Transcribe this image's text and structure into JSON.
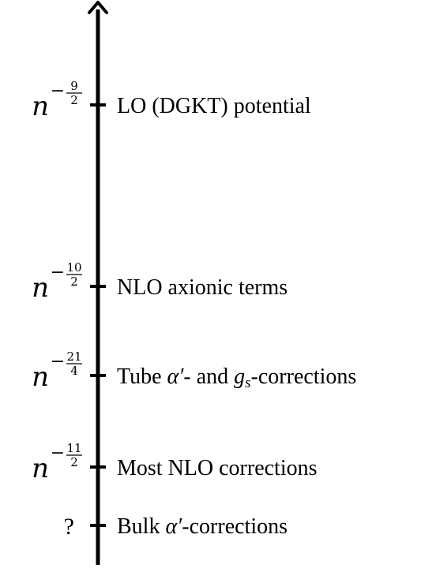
{
  "diagram": {
    "axis": {
      "name": "order-axis",
      "arrow_direction": "up"
    },
    "entries": [
      {
        "key": "lo",
        "order": {
          "kind": "power",
          "base": "n",
          "sign": "−",
          "num": "9",
          "den": "2"
        },
        "label_parts": [
          {
            "text": "LO (DGKT) potential",
            "style": "roman"
          }
        ]
      },
      {
        "key": "nlo-axionic",
        "order": {
          "kind": "power",
          "base": "n",
          "sign": "−",
          "num": "10",
          "den": "2"
        },
        "label_parts": [
          {
            "text": "NLO axionic terms",
            "style": "roman"
          }
        ]
      },
      {
        "key": "tube",
        "order": {
          "kind": "power",
          "base": "n",
          "sign": "−",
          "num": "21",
          "den": "4"
        },
        "label_parts": [
          {
            "text": "Tube ",
            "style": "roman"
          },
          {
            "text": "α′",
            "style": "math"
          },
          {
            "text": "- and ",
            "style": "roman"
          },
          {
            "text": "g",
            "style": "math"
          },
          {
            "text": "s",
            "style": "math-sub"
          },
          {
            "text": "-corrections",
            "style": "roman"
          }
        ]
      },
      {
        "key": "most-nlo",
        "order": {
          "kind": "power",
          "base": "n",
          "sign": "−",
          "num": "11",
          "den": "2"
        },
        "label_parts": [
          {
            "text": "Most NLO corrections",
            "style": "roman"
          }
        ]
      },
      {
        "key": "bulk",
        "order": {
          "kind": "unknown",
          "symbol": "?"
        },
        "label_parts": [
          {
            "text": "Bulk ",
            "style": "roman"
          },
          {
            "text": "α′",
            "style": "math"
          },
          {
            "text": "-corrections",
            "style": "roman"
          }
        ]
      }
    ]
  }
}
